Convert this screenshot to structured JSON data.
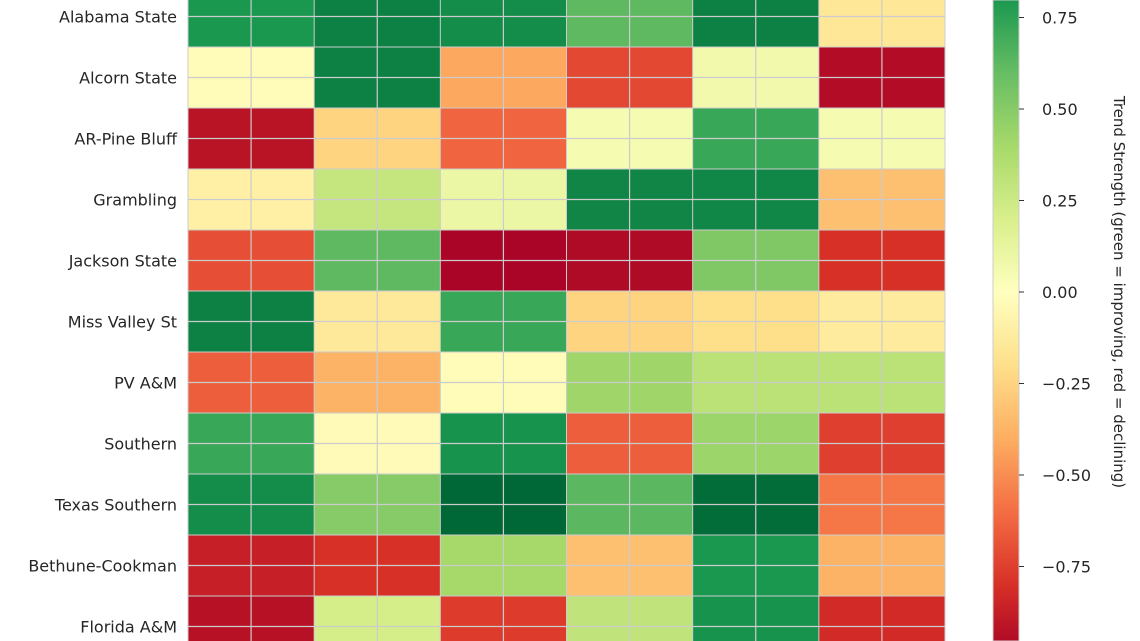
{
  "chart_data": {
    "type": "heatmap",
    "colormap": "RdYlGn",
    "vlim": [
      -1,
      1
    ],
    "rows": [
      "Alabama State",
      "Alcorn State",
      "AR-Pine Bluff",
      "Grambling",
      "Jackson State",
      "Miss Valley St",
      "PV A&M",
      "Southern",
      "Texas Southern",
      "Bethune-Cookman",
      "Florida A&M"
    ],
    "values": [
      [
        0.8,
        0.9,
        0.85,
        0.62,
        0.9,
        -0.15
      ],
      [
        -0.02,
        0.9,
        -0.42,
        -0.72,
        0.07,
        -0.95
      ],
      [
        -0.92,
        -0.25,
        -0.63,
        0.05,
        0.72,
        0.05
      ],
      [
        -0.1,
        0.28,
        0.1,
        0.88,
        0.87,
        -0.33
      ],
      [
        -0.7,
        0.62,
        -0.98,
        -0.96,
        0.52,
        -0.8
      ],
      [
        0.9,
        -0.14,
        0.72,
        -0.25,
        -0.2,
        -0.13
      ],
      [
        -0.65,
        -0.38,
        -0.02,
        0.42,
        0.32,
        0.32
      ],
      [
        0.72,
        -0.03,
        0.82,
        -0.65,
        0.43,
        -0.75
      ],
      [
        0.85,
        0.5,
        1.0,
        0.63,
        0.98,
        -0.57
      ],
      [
        -0.87,
        -0.8,
        0.4,
        -0.33,
        0.8,
        -0.38
      ],
      [
        -0.93,
        0.21,
        -0.76,
        0.3,
        0.82,
        -0.82
      ]
    ],
    "colorbar": {
      "label": "Trend Strength (green = improving, red = declining)",
      "ticks": [
        0.75,
        0.5,
        0.25,
        0,
        -0.25,
        -0.5,
        -0.75
      ],
      "tick_labels": [
        "0.75",
        "0.50",
        "0.25",
        "0.00",
        "−0.25",
        "−0.50",
        "−0.75"
      ]
    },
    "grid": true
  }
}
